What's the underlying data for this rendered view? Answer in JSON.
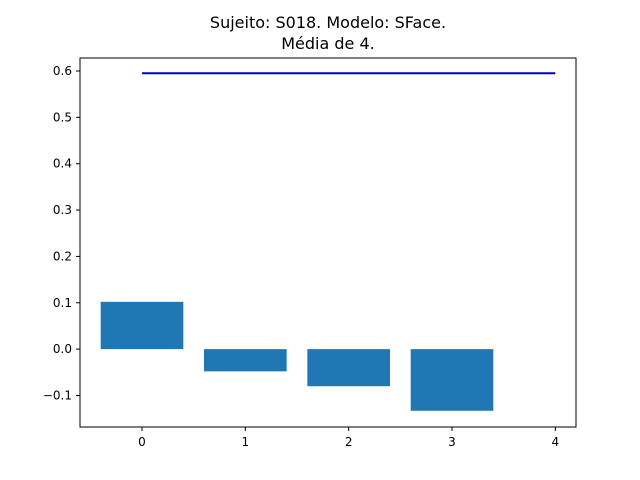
{
  "chart_data": {
    "type": "bar",
    "title_line1": "Sujeito: S018. Modelo: SFace.",
    "title_line2": "Média de 4.",
    "categories": [
      0,
      1,
      2,
      3
    ],
    "values": [
      0.102,
      -0.048,
      -0.08,
      -0.133
    ],
    "reference_line": {
      "value": 0.595,
      "x_start": 0,
      "x_end": 4
    },
    "xlim": [
      -0.6,
      4.2
    ],
    "ylim": [
      -0.168,
      0.628
    ],
    "xticks": [
      0,
      1,
      2,
      3,
      4
    ],
    "xtick_labels": [
      "0",
      "1",
      "2",
      "3",
      "4"
    ],
    "yticks": [
      -0.1,
      0.0,
      0.1,
      0.2,
      0.3,
      0.4,
      0.5,
      0.6
    ],
    "ytick_labels": [
      "−0.1",
      "0.0",
      "0.1",
      "0.2",
      "0.3",
      "0.4",
      "0.5",
      "0.6"
    ],
    "xlabel": "",
    "ylabel": "",
    "grid": false,
    "colors": {
      "bar": "#1f77b4",
      "reference_line": "#0000cc"
    }
  }
}
